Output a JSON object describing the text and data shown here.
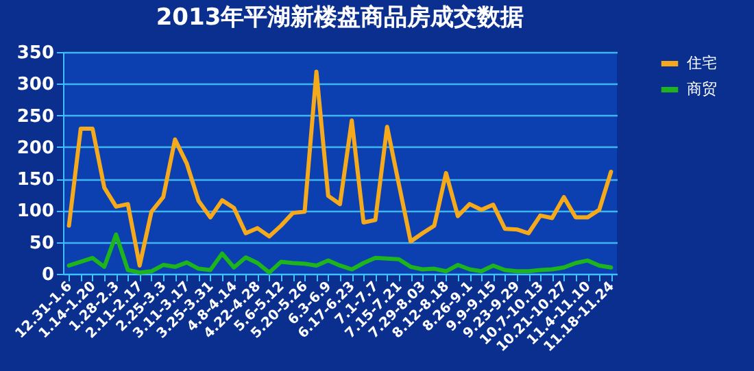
{
  "chart_data": {
    "type": "line",
    "title": "2013年平湖新楼盘商品房成交数据",
    "categories": [
      "12.31-1.6",
      null,
      "1.14-1.20",
      null,
      "1.28-2.3",
      null,
      "2.11-2.17",
      null,
      "2.25-3.3",
      null,
      "3.11-3.17",
      null,
      "3.25-3.31",
      null,
      "4.8-4.14",
      null,
      "4.22-4.28",
      null,
      "5.6-5.12",
      null,
      "5.20-5.26",
      null,
      "6.3-6.9",
      null,
      "6.17-6.23",
      null,
      "7.1-7.7",
      null,
      "7.15-7.21",
      null,
      "7.29-8.03",
      null,
      "8.12-8.18",
      null,
      "8.26-9.1",
      null,
      "9.9-9.15",
      null,
      "9.23-9.29",
      null,
      "10.7-10.13",
      null,
      "10.21-10.27",
      null,
      "11.4-11.10",
      null,
      "11.18-11.24"
    ],
    "series": [
      {
        "name": "住宅",
        "color": "#f5a91c",
        "values": [
          76,
          229,
          229,
          136,
          106,
          110,
          13,
          98,
          121,
          212,
          174,
          115,
          89,
          116,
          104,
          64,
          72,
          59,
          76,
          96,
          98,
          319,
          123,
          110,
          242,
          81,
          85,
          232,
          141,
          51,
          64,
          76,
          159,
          91,
          110,
          101,
          109,
          71,
          70,
          64,
          92,
          88,
          121,
          89,
          89,
          101,
          161
        ]
      },
      {
        "name": "商贸",
        "color": "#1db41d",
        "values": [
          13,
          19,
          25,
          11,
          62,
          6,
          2,
          4,
          14,
          11,
          18,
          8,
          6,
          32,
          10,
          26,
          17,
          2,
          19,
          17,
          16,
          13,
          21,
          13,
          7,
          17,
          25,
          24,
          23,
          11,
          7,
          8,
          4,
          14,
          7,
          4,
          13,
          6,
          4,
          4,
          6,
          7,
          10,
          17,
          21,
          13,
          10
        ]
      }
    ],
    "ylim": [
      0,
      350
    ],
    "yticks": [
      0,
      50,
      100,
      150,
      200,
      250,
      300,
      350
    ],
    "grid": "y",
    "legend": "right",
    "marker": "none",
    "line_style": "solid"
  }
}
